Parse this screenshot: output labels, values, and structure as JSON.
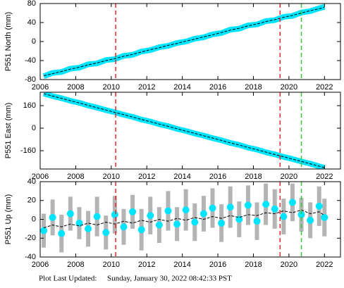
{
  "chart_data": [
    {
      "type": "line",
      "ylabel": "P551 North (mm)",
      "x": [
        2006.2,
        2006.7,
        2007.2,
        2007.7,
        2008.2,
        2008.7,
        2009.2,
        2009.7,
        2010.2,
        2010.7,
        2011.2,
        2011.7,
        2012.2,
        2012.7,
        2013.2,
        2013.7,
        2014.2,
        2014.7,
        2015.2,
        2015.7,
        2016.2,
        2016.7,
        2017.2,
        2017.7,
        2018.2,
        2018.7,
        2019.2,
        2019.7,
        2020.2,
        2020.7,
        2021.2,
        2021.7,
        2022.0
      ],
      "series": [
        {
          "color": "#00e5ff",
          "role": "data",
          "values": [
            -73,
            -66,
            -64,
            -57,
            -55,
            -48,
            -46,
            -39,
            -37,
            -30,
            -28,
            -21,
            -18,
            -12,
            -9,
            -3,
            0,
            6,
            9,
            15,
            18,
            25,
            27,
            34,
            36,
            43,
            45,
            52,
            54,
            61,
            64,
            70,
            73
          ]
        },
        {
          "color": "#000000",
          "role": "model",
          "values": [
            -72,
            -67.5,
            -63,
            -58,
            -54,
            -49,
            -45,
            -40,
            -36,
            -31,
            -27,
            -22,
            -17,
            -13,
            -8,
            -4,
            1,
            5,
            10,
            14,
            19,
            24,
            28,
            33,
            37,
            42,
            46,
            51,
            55,
            60,
            65,
            69,
            72
          ]
        }
      ],
      "vlines": [
        {
          "x": 2010.25,
          "color": "#e8262b"
        },
        {
          "x": 2019.5,
          "color": "#e8262b"
        },
        {
          "x": 2020.7,
          "color": "#3ec63e"
        }
      ],
      "xlim": [
        2006,
        2022.9
      ],
      "xticks": [
        2006,
        2008,
        2010,
        2012,
        2014,
        2016,
        2018,
        2020,
        2022
      ],
      "ylim": [
        -80,
        80
      ],
      "yticks": [
        -80,
        -40,
        0,
        40,
        80
      ]
    },
    {
      "type": "line",
      "ylabel": "P551 East (mm)",
      "x": [
        2006.2,
        2006.7,
        2007.2,
        2007.7,
        2008.2,
        2008.7,
        2009.2,
        2009.7,
        2010.2,
        2010.7,
        2011.2,
        2011.7,
        2012.2,
        2012.7,
        2013.2,
        2013.7,
        2014.2,
        2014.7,
        2015.2,
        2015.7,
        2016.2,
        2016.7,
        2017.2,
        2017.7,
        2018.2,
        2018.7,
        2019.2,
        2019.7,
        2020.2,
        2020.7,
        2021.2,
        2021.7,
        2022.0
      ],
      "series": [
        {
          "color": "#00e5ff",
          "role": "data",
          "values": [
            246,
            227,
            213,
            194,
            180,
            161,
            146,
            128,
            113,
            95,
            80,
            61,
            47,
            28,
            14,
            -5,
            -20,
            -38,
            -53,
            -71,
            -86,
            -105,
            -119,
            -138,
            -152,
            -171,
            -186,
            -204,
            -219,
            -237,
            -252,
            -271,
            -281
          ]
        },
        {
          "color": "#000000",
          "role": "model",
          "values": [
            245,
            228,
            212,
            195,
            179,
            162,
            145,
            129,
            112,
            96,
            79,
            62,
            46,
            29,
            13,
            -4,
            -21,
            -37,
            -54,
            -70,
            -87,
            -104,
            -120,
            -137,
            -153,
            -170,
            -187,
            -203,
            -220,
            -236,
            -253,
            -270,
            -280
          ]
        }
      ],
      "vlines": [
        {
          "x": 2010.25,
          "color": "#e8262b"
        },
        {
          "x": 2019.5,
          "color": "#e8262b"
        },
        {
          "x": 2020.7,
          "color": "#3ec63e"
        }
      ],
      "xlim": [
        2006,
        2022.9
      ],
      "xticks": [
        2006,
        2008,
        2010,
        2012,
        2014,
        2016,
        2018,
        2020,
        2022
      ],
      "ylim": [
        -290,
        255
      ],
      "yticks": [
        -160,
        0,
        160
      ]
    },
    {
      "type": "scatter",
      "ylabel": "P551 Up (mm)",
      "x": [
        2006.2,
        2006.7,
        2007.2,
        2007.7,
        2008.2,
        2008.7,
        2009.2,
        2009.7,
        2010.2,
        2010.7,
        2011.2,
        2011.7,
        2012.2,
        2012.7,
        2013.2,
        2013.7,
        2014.2,
        2014.7,
        2015.2,
        2015.7,
        2016.2,
        2016.7,
        2017.2,
        2017.7,
        2018.2,
        2018.7,
        2019.2,
        2019.7,
        2020.2,
        2020.7,
        2021.2,
        2021.7,
        2022.0
      ],
      "series": [
        {
          "color": "#00e5ff",
          "role": "data",
          "error_color": "#b4b4b4",
          "values": [
            -12,
            2,
            -15,
            6,
            -4,
            -10,
            3,
            -14,
            5,
            -8,
            8,
            -11,
            4,
            -6,
            9,
            -5,
            10,
            -3,
            6,
            12,
            -4,
            13,
            0,
            15,
            -2,
            16,
            11,
            3,
            18,
            5,
            -1,
            14,
            2
          ],
          "errors": [
            18,
            19,
            20,
            18,
            17,
            19,
            21,
            18,
            20,
            19,
            18,
            22,
            20,
            19,
            21,
            18,
            22,
            20,
            19,
            21,
            20,
            22,
            19,
            21,
            20,
            22,
            21,
            19,
            20,
            18,
            19,
            21,
            20
          ]
        },
        {
          "color": "#000000",
          "role": "model",
          "values": [
            -9,
            -6,
            -8,
            -5,
            -7,
            -4,
            -6,
            -3,
            -5,
            -2,
            -4,
            -1,
            -3,
            0,
            -2,
            1,
            -1,
            2,
            0,
            3,
            1,
            4,
            2,
            5,
            4,
            7,
            6,
            9,
            7,
            10,
            6,
            8,
            4
          ]
        }
      ],
      "vlines": [
        {
          "x": 2010.25,
          "color": "#e8262b"
        },
        {
          "x": 2019.5,
          "color": "#e8262b"
        },
        {
          "x": 2020.7,
          "color": "#3ec63e"
        }
      ],
      "xlim": [
        2006,
        2022.9
      ],
      "xticks": [
        2006,
        2008,
        2010,
        2012,
        2014,
        2016,
        2018,
        2020,
        2022
      ],
      "ylim": [
        -40,
        40
      ],
      "yticks": [
        -40,
        -20,
        0,
        20,
        40
      ]
    }
  ],
  "footer": {
    "label": "Plot Last Updated:",
    "date": "Sunday, January 30, 2022 08:42:33 PST"
  }
}
